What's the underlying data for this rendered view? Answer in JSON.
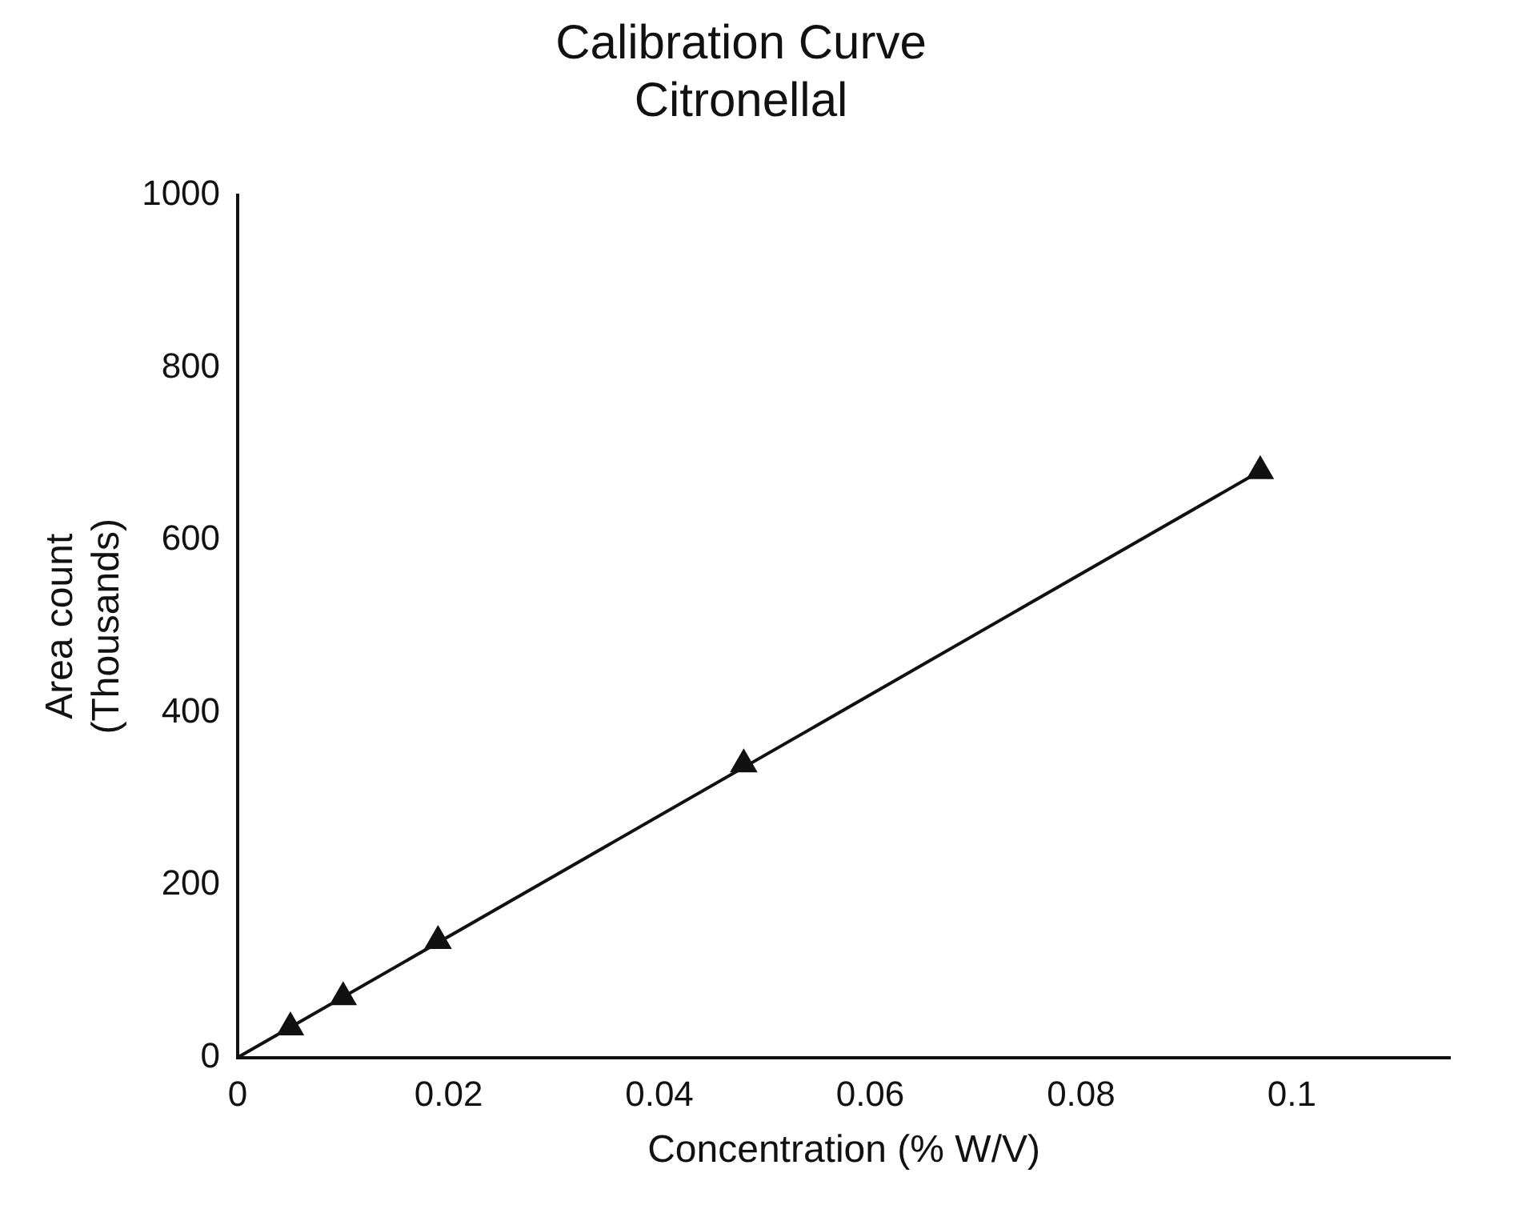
{
  "chart_data": {
    "type": "scatter",
    "title": "Calibration Curve\nCitronellal",
    "xlabel": "Concentration (% W/V)",
    "ylabel": "Area count\n(Thousands)",
    "series": [
      {
        "color": "#111111",
        "marker": "triangle",
        "x": [
          0.005,
          0.01,
          0.019,
          0.048,
          0.097
        ],
        "values": [
          35,
          70,
          135,
          340,
          680
        ]
      },
      {
        "type": "line",
        "color": "#111111",
        "marker": "none",
        "line_style": "solid",
        "x": [
          0,
          0.097
        ],
        "values": [
          0,
          680
        ]
      }
    ],
    "xlim": [
      0,
      0.115
    ],
    "xticks": [
      0,
      0.02,
      0.04,
      0.06,
      0.08,
      0.1
    ],
    "ylim": [
      0,
      1000
    ],
    "yticks": [
      0,
      200,
      400,
      600,
      800,
      1000
    ],
    "grid": false,
    "legend": false
  }
}
